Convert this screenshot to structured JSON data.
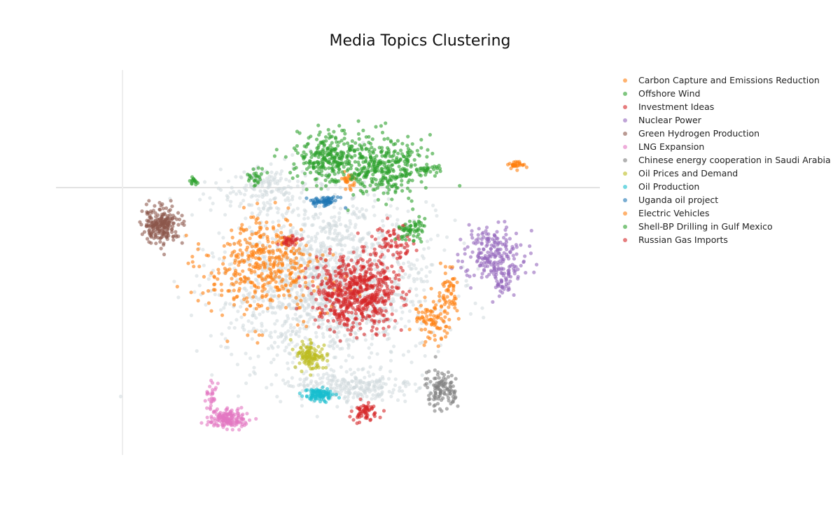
{
  "chart_data": {
    "type": "scatter",
    "title": "Media Topics Clustering",
    "xlabel": "",
    "ylabel": "",
    "grid": false,
    "zero_lines": true,
    "legend_position": "right",
    "background_points_color": "#cfd8dc",
    "series": [
      {
        "name": "Carbon Capture and Emissions Reduction",
        "color": "#ff7f0e",
        "clusters": [
          {
            "cx": 3.4,
            "cy": 2.6,
            "sx": 1.2,
            "sy": 1.0,
            "n": 340
          },
          {
            "cx": 5.5,
            "cy": 4.7,
            "sx": 0.2,
            "sy": 0.2,
            "n": 25
          },
          {
            "cx": 4.0,
            "cy": 2.2,
            "sx": 1.4,
            "sy": 1.3,
            "n": 80
          }
        ]
      },
      {
        "name": "Offshore Wind",
        "color": "#2ca02c",
        "clusters": [
          {
            "cx": 5.0,
            "cy": 5.3,
            "sx": 0.7,
            "sy": 0.6,
            "n": 260
          },
          {
            "cx": 6.3,
            "cy": 5.1,
            "sx": 0.9,
            "sy": 0.7,
            "n": 330
          },
          {
            "cx": 7.3,
            "cy": 5.0,
            "sx": 0.4,
            "sy": 0.1,
            "n": 30
          }
        ]
      },
      {
        "name": "Investment Ideas",
        "color": "#d62728",
        "clusters": [
          {
            "cx": 5.7,
            "cy": 1.9,
            "sx": 0.9,
            "sy": 0.8,
            "n": 600
          },
          {
            "cx": 6.5,
            "cy": 3.2,
            "sx": 0.5,
            "sy": 0.4,
            "n": 60
          },
          {
            "cx": 5.9,
            "cy": -1.1,
            "sx": 0.3,
            "sy": 0.2,
            "n": 60
          }
        ]
      },
      {
        "name": "Nuclear Power",
        "color": "#9467bd",
        "clusters": [
          {
            "cx": 9.0,
            "cy": 2.9,
            "sx": 0.7,
            "sy": 0.6,
            "n": 200
          },
          {
            "cx": 9.2,
            "cy": 2.2,
            "sx": 0.3,
            "sy": 0.4,
            "n": 50
          }
        ]
      },
      {
        "name": "Green Hydrogen Production",
        "color": "#8c564b",
        "clusters": [
          {
            "cx": 1.0,
            "cy": 3.6,
            "sx": 0.4,
            "sy": 0.4,
            "n": 220
          }
        ]
      },
      {
        "name": "LNG Expansion",
        "color": "#e377c2",
        "clusters": [
          {
            "cx": 2.6,
            "cy": -1.3,
            "sx": 0.4,
            "sy": 0.2,
            "n": 150
          },
          {
            "cx": 2.2,
            "cy": -0.7,
            "sx": 0.15,
            "sy": 0.4,
            "n": 30
          }
        ]
      },
      {
        "name": "Chinese energy cooperation in Saudi Arabia",
        "color": "#7f7f7f",
        "clusters": [
          {
            "cx": 7.7,
            "cy": -0.5,
            "sx": 0.35,
            "sy": 0.45,
            "n": 110
          }
        ]
      },
      {
        "name": "Oil Prices and Demand",
        "color": "#bcbd22",
        "clusters": [
          {
            "cx": 4.6,
            "cy": 0.3,
            "sx": 0.3,
            "sy": 0.3,
            "n": 120
          }
        ]
      },
      {
        "name": "Oil Production",
        "color": "#17becf",
        "clusters": [
          {
            "cx": 4.8,
            "cy": -0.7,
            "sx": 0.3,
            "sy": 0.15,
            "n": 100
          }
        ]
      },
      {
        "name": "Uganda oil project",
        "color": "#1f77b4",
        "clusters": [
          {
            "cx": 4.9,
            "cy": 4.2,
            "sx": 0.3,
            "sy": 0.12,
            "n": 60
          }
        ]
      },
      {
        "name": "Electric Vehicles",
        "color": "#ff7f0e",
        "clusters": [
          {
            "cx": 7.5,
            "cy": 1.2,
            "sx": 0.4,
            "sy": 0.5,
            "n": 80
          },
          {
            "cx": 7.9,
            "cy": 1.8,
            "sx": 0.2,
            "sy": 0.6,
            "n": 60
          },
          {
            "cx": 9.5,
            "cy": 5.1,
            "sx": 0.2,
            "sy": 0.1,
            "n": 30
          }
        ]
      },
      {
        "name": "Shell-BP Drilling in Gulf Mexico",
        "color": "#2ca02c",
        "clusters": [
          {
            "cx": 7.0,
            "cy": 3.5,
            "sx": 0.3,
            "sy": 0.3,
            "n": 60
          },
          {
            "cx": 1.8,
            "cy": 4.7,
            "sx": 0.1,
            "sy": 0.1,
            "n": 15
          },
          {
            "cx": 3.3,
            "cy": 4.8,
            "sx": 0.2,
            "sy": 0.2,
            "n": 25
          }
        ]
      },
      {
        "name": "Russian Gas Imports",
        "color": "#d62728",
        "clusters": [
          {
            "cx": 4.1,
            "cy": 3.2,
            "sx": 0.2,
            "sy": 0.1,
            "n": 30
          }
        ]
      }
    ],
    "background_clusters": [
      {
        "cx": 5.0,
        "cy": 2.2,
        "sx": 2.3,
        "sy": 1.9,
        "n": 1500
      },
      {
        "cx": 3.5,
        "cy": 4.5,
        "sx": 1.0,
        "sy": 0.5,
        "n": 150
      },
      {
        "cx": 5.5,
        "cy": -0.5,
        "sx": 1.5,
        "sy": 0.4,
        "n": 250
      }
    ],
    "xlim": [
      -1.5,
      11.5
    ],
    "ylim": [
      -2.2,
      7.5
    ]
  }
}
